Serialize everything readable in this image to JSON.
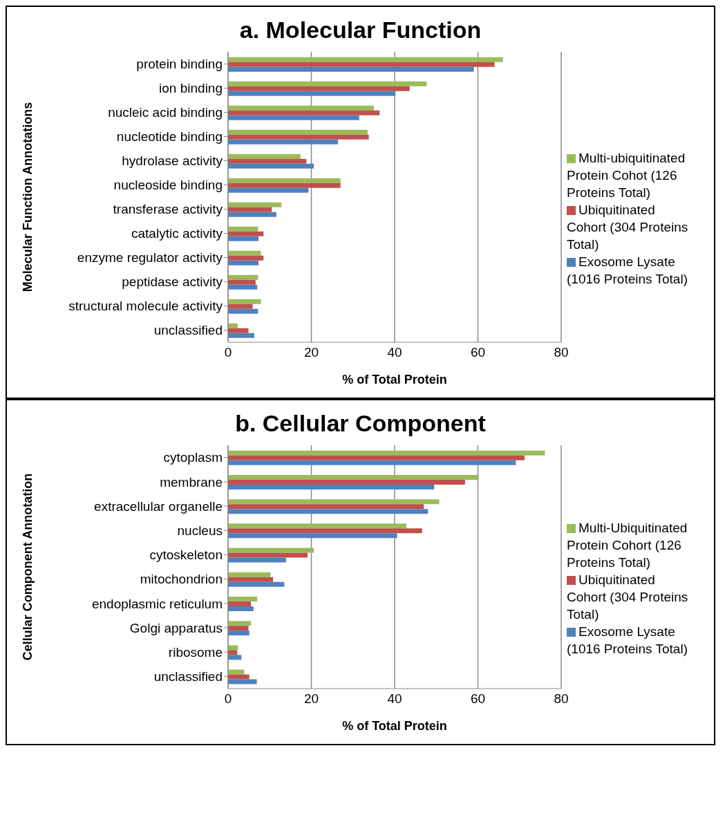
{
  "chart_data": [
    {
      "type": "bar",
      "orientation": "horizontal",
      "title": "a. Molecular Function",
      "xlabel": "% of Total Protein",
      "ylabel": "Molecular Function Annotations",
      "categories": [
        "protein binding",
        "ion binding",
        "nucleic acid binding",
        "nucleotide binding",
        "hydrolase activity",
        "nucleoside binding",
        "transferase activity",
        "catalytic activity",
        "enzyme regulator activity",
        "peptidase activity",
        "structural molecule activity",
        "unclassified"
      ],
      "series": [
        {
          "name": "Multi-ubiquitinated Protein Cohot (126 Proteins Total)",
          "color": "#9bbb59",
          "values": [
            66.0,
            47.7,
            35.0,
            33.5,
            17.4,
            27.0,
            12.8,
            7.2,
            7.9,
            7.2,
            7.9,
            2.3
          ]
        },
        {
          "name": "Ubiquitinated Cohort (304 Proteins Total)",
          "color": "#c0504d",
          "values": [
            64.0,
            43.6,
            36.4,
            33.8,
            18.8,
            27.0,
            10.5,
            8.5,
            8.5,
            6.6,
            5.9,
            4.9
          ]
        },
        {
          "name": "Exosome Lysate (1016 Proteins Total)",
          "color": "#4f81bd",
          "values": [
            59.0,
            40.2,
            31.5,
            26.4,
            20.6,
            19.3,
            11.6,
            7.3,
            7.3,
            7.0,
            7.2,
            6.3
          ]
        }
      ],
      "xlim": [
        0,
        80
      ],
      "xticks": [
        0,
        20,
        40,
        60,
        80
      ],
      "grid": "x",
      "legend": "right"
    },
    {
      "type": "bar",
      "orientation": "horizontal",
      "title": "b. Cellular Component",
      "xlabel": "% of Total Protein",
      "ylabel": "Cellular Component Annotation",
      "categories": [
        "cytoplasm",
        "membrane",
        "extracellular organelle",
        "nucleus",
        "cytoskeleton",
        "mitochondrion",
        "endoplasmic reticulum",
        "Golgi apparatus",
        "ribosome",
        "unclassified"
      ],
      "series": [
        {
          "name": "Multi-Ubiquitinated Protein Cohort (126 Proteins Total)",
          "color": "#9bbb59",
          "values": [
            76.1,
            60.2,
            50.7,
            42.8,
            20.6,
            10.2,
            7.0,
            5.5,
            2.4,
            3.9
          ]
        },
        {
          "name": "Ubiquitinated Cohort (304 Proteins Total)",
          "color": "#c0504d",
          "values": [
            71.2,
            56.9,
            47.0,
            46.6,
            19.1,
            10.8,
            5.5,
            4.9,
            2.2,
            5.1
          ]
        },
        {
          "name": "Exosome Lysate (1016 Proteins Total)",
          "color": "#4f81bd",
          "values": [
            69.1,
            49.5,
            48.0,
            40.6,
            13.9,
            13.5,
            6.1,
            5.1,
            3.2,
            6.9
          ]
        }
      ],
      "xlim": [
        0,
        80
      ],
      "xticks": [
        0,
        20,
        40,
        60,
        80
      ],
      "grid": "x",
      "legend": "right"
    }
  ]
}
